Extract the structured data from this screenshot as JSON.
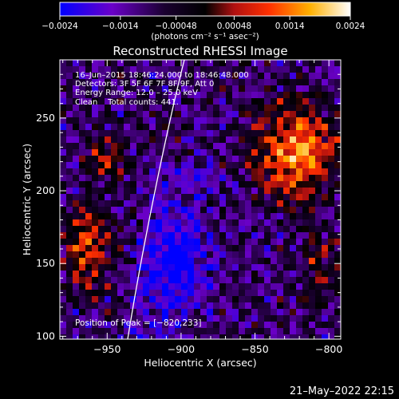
{
  "chart_data": {
    "type": "heatmap",
    "title": "Reconstructed RHESSI Image",
    "xlabel": "Heliocentric X (arcsec)",
    "ylabel": "Heliocentric Y (arcsec)",
    "xlim": [
      -982,
      -792
    ],
    "ylim": [
      98,
      290
    ],
    "x_ticks": [
      -950,
      -900,
      -850,
      -800
    ],
    "x_tick_labels": [
      "−950",
      "−900",
      "−850",
      "−800"
    ],
    "y_ticks": [
      100,
      150,
      200,
      250
    ],
    "y_tick_labels": [
      "100",
      "150",
      "200",
      "250"
    ],
    "colorbar": {
      "range": [
        -0.0024,
        0.0024
      ],
      "ticks": [
        -0.0024,
        -0.0014,
        -0.00048,
        0.00048,
        0.0014,
        0.0024
      ],
      "tick_labels": [
        "−0.0024",
        "−0.0014",
        "−0.00048",
        "0.00048",
        "0.0014",
        "0.0024"
      ],
      "unit_label": "(photons cm⁻² s⁻¹ asec⁻²)",
      "colors": [
        "#0000ff",
        "#6a00c8",
        "#000000",
        "#b01010",
        "#ff3000",
        "#ff9800",
        "#ffff00",
        "#ffffff"
      ]
    },
    "annotations": {
      "time": "16–Jun–2015 18:46:24.000 to 18:46:48.000",
      "detectors": "Detectors: 3F 5F 6F 7F 8F 9F, Att 0",
      "energy": "Energy Range: 12.0 – 25.0 keV",
      "clean": "Clean    Total counts: 441.",
      "peak": "Position of Peak = [−820,233]"
    },
    "peak": {
      "x": -820,
      "y": 233
    },
    "date_stamp": "21–May–2022 22:15"
  }
}
